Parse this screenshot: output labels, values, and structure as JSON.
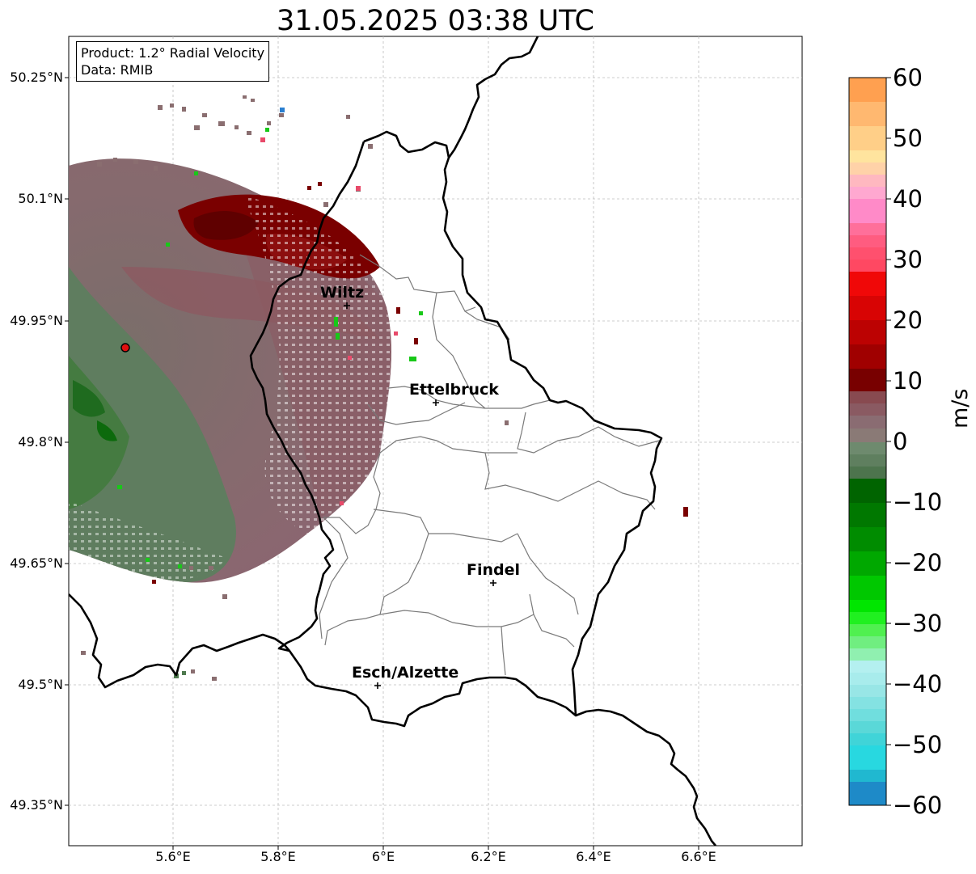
{
  "title": "31.05.2025 03:38 UTC",
  "info_box": {
    "product": "Product: 1.2° Radial Velocity",
    "source": "Data: RMIB"
  },
  "axes": {
    "lat_ticks": [
      "50.25°N",
      "50.1°N",
      "49.95°N",
      "49.8°N",
      "49.65°N",
      "49.5°N",
      "49.35°N"
    ],
    "lon_ticks": [
      "5.6°E",
      "5.8°E",
      "6°E",
      "6.2°E",
      "6.4°E",
      "6.6°E"
    ],
    "gridlines": true
  },
  "cities": [
    {
      "name": "Wiltz"
    },
    {
      "name": "Ettelbruck"
    },
    {
      "name": "Findel"
    },
    {
      "name": "Esch/Alzette"
    }
  ],
  "radar_marker_color": "#e01010",
  "colorbar": {
    "label": "m/s",
    "ticks": [
      "60",
      "50",
      "40",
      "30",
      "20",
      "10",
      "0",
      "−10",
      "−20",
      "−30",
      "−40",
      "−50",
      "−60"
    ],
    "range": [
      -60,
      60
    ]
  }
}
